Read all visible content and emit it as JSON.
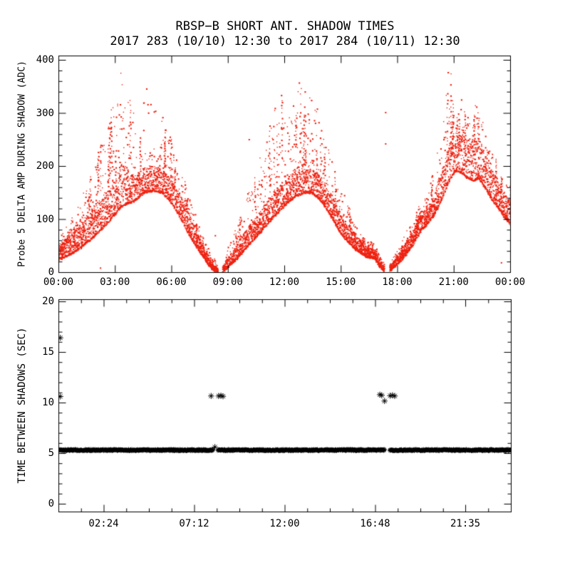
{
  "figure": {
    "background": "#ffffff",
    "axis_color": "#000000"
  },
  "chart_data": {
    "type": "scatter",
    "title": "RBSP−B SHORT ANT. SHADOW TIMES",
    "subtitle": "2017 283 (10/10) 12:30 to 2017 284 (10/11) 12:30",
    "panels": [
      {
        "name": "probe5-delta-amp",
        "ylabel": "Probe 5 DELTA AMP DURING SHADOW (ADC)",
        "xlabel": "",
        "xlim_hours": [
          0,
          24
        ],
        "ylim": [
          0,
          400
        ],
        "x_major_ticks_hours": [
          0,
          3,
          6,
          9,
          12,
          15,
          18,
          21,
          24
        ],
        "x_tick_labels": [
          "00:00",
          "03:00",
          "06:00",
          "09:00",
          "12:00",
          "15:00",
          "18:00",
          "21:00",
          "00:00"
        ],
        "y_major_ticks": [
          0,
          100,
          200,
          300,
          400
        ],
        "y_minor_step": 20,
        "marker": "dot",
        "color": "#ee2211",
        "grid": false,
        "series_note": "three dense shadow-season lobes; each lobe listed as envelope keypoints [hour, low, high]",
        "lobes": [
          {
            "band": [
              [
                0,
                22,
                55
              ],
              [
                0.5,
                30,
                68
              ],
              [
                1,
                40,
                85
              ],
              [
                1.5,
                55,
                105
              ],
              [
                2,
                70,
                128
              ],
              [
                2.5,
                88,
                152
              ],
              [
                3,
                108,
                182
              ],
              [
                3.3,
                122,
                208
              ],
              [
                3.6,
                128,
                198
              ],
              [
                4,
                132,
                182
              ],
              [
                4.5,
                148,
                196
              ],
              [
                5,
                152,
                200
              ],
              [
                5.5,
                148,
                194
              ],
              [
                6,
                128,
                172
              ],
              [
                6.5,
                98,
                142
              ],
              [
                7,
                64,
                104
              ],
              [
                7.5,
                36,
                62
              ],
              [
                7.9,
                14,
                34
              ],
              [
                8.2,
                2,
                16
              ],
              [
                8.45,
                0,
                8
              ]
            ],
            "cloud": [
              [
                0,
                28,
                72
              ],
              [
                0.5,
                38,
                92
              ],
              [
                1,
                48,
                122
              ],
              [
                1.5,
                62,
                168
              ],
              [
                2,
                78,
                218
              ],
              [
                2.5,
                96,
                268
              ],
              [
                3,
                118,
                332
              ],
              [
                3.2,
                126,
                382
              ],
              [
                3.45,
                132,
                395
              ],
              [
                3.7,
                136,
                352
              ],
              [
                4,
                140,
                302
              ],
              [
                4.2,
                146,
                288
              ],
              [
                4.5,
                156,
                338
              ],
              [
                4.75,
                162,
                352
              ],
              [
                4.95,
                162,
                345
              ],
              [
                5.2,
                160,
                312
              ],
              [
                5.5,
                156,
                292
              ],
              [
                6,
                136,
                248
              ],
              [
                6.5,
                106,
                198
              ],
              [
                7,
                70,
                132
              ],
              [
                7.5,
                40,
                84
              ],
              [
                8,
                10,
                42
              ],
              [
                8.45,
                0,
                12
              ]
            ],
            "hole": [
              3.95,
              5.35,
              225,
              288
            ]
          },
          {
            "band": [
              [
                8.7,
                0,
                10
              ],
              [
                9,
                8,
                28
              ],
              [
                9.5,
                26,
                56
              ],
              [
                10,
                46,
                82
              ],
              [
                10.5,
                66,
                106
              ],
              [
                11,
                86,
                132
              ],
              [
                11.5,
                106,
                156
              ],
              [
                12,
                124,
                176
              ],
              [
                12.5,
                140,
                194
              ],
              [
                13,
                148,
                204
              ],
              [
                13.4,
                148,
                200
              ],
              [
                13.8,
                138,
                186
              ],
              [
                14.2,
                118,
                164
              ],
              [
                14.6,
                94,
                138
              ],
              [
                15,
                70,
                108
              ],
              [
                15.4,
                54,
                88
              ],
              [
                15.8,
                40,
                68
              ],
              [
                16.3,
                28,
                48
              ],
              [
                16.8,
                24,
                42
              ],
              [
                17,
                10,
                24
              ],
              [
                17.3,
                0,
                10
              ]
            ],
            "cloud": [
              [
                8.7,
                0,
                14
              ],
              [
                9,
                10,
                46
              ],
              [
                9.5,
                28,
                92
              ],
              [
                10,
                48,
                148
              ],
              [
                10.5,
                70,
                205
              ],
              [
                11,
                90,
                262
              ],
              [
                11.5,
                110,
                310
              ],
              [
                12,
                130,
                340
              ],
              [
                12.5,
                146,
                356
              ],
              [
                12.85,
                150,
                358
              ],
              [
                13,
                152,
                345
              ],
              [
                13.4,
                152,
                330
              ],
              [
                13.8,
                142,
                302
              ],
              [
                14.2,
                122,
                258
              ],
              [
                14.6,
                98,
                212
              ],
              [
                15,
                74,
                166
              ],
              [
                15.4,
                58,
                122
              ],
              [
                15.8,
                44,
                88
              ],
              [
                16.3,
                32,
                62
              ],
              [
                16.8,
                28,
                52
              ],
              [
                17,
                14,
                34
              ],
              [
                17.3,
                0,
                14
              ]
            ],
            "hole": null
          },
          {
            "band": [
              [
                17.6,
                2,
                12
              ],
              [
                18,
                14,
                34
              ],
              [
                18.4,
                30,
                54
              ],
              [
                18.8,
                50,
                80
              ],
              [
                19.2,
                76,
                106
              ],
              [
                19.5,
                86,
                112
              ],
              [
                19.8,
                100,
                134
              ],
              [
                20.2,
                124,
                174
              ],
              [
                20.5,
                150,
                208
              ],
              [
                20.8,
                176,
                248
              ],
              [
                21.1,
                190,
                268
              ],
              [
                21.4,
                186,
                260
              ],
              [
                21.7,
                176,
                250
              ],
              [
                22,
                170,
                246
              ],
              [
                22.3,
                176,
                254
              ],
              [
                22.6,
                160,
                228
              ],
              [
                23,
                136,
                194
              ],
              [
                23.4,
                116,
                164
              ],
              [
                23.7,
                100,
                146
              ],
              [
                24,
                88,
                134
              ]
            ],
            "cloud": [
              [
                17.6,
                2,
                16
              ],
              [
                18,
                16,
                44
              ],
              [
                18.4,
                32,
                70
              ],
              [
                18.8,
                52,
                100
              ],
              [
                19.2,
                78,
                130
              ],
              [
                19.5,
                88,
                142
              ],
              [
                19.8,
                102,
                176
              ],
              [
                20.2,
                128,
                242
              ],
              [
                20.5,
                156,
                312
              ],
              [
                20.7,
                180,
                392
              ],
              [
                20.85,
                186,
                400
              ],
              [
                21,
                190,
                342
              ],
              [
                21.2,
                194,
                312
              ],
              [
                21.4,
                190,
                330
              ],
              [
                21.6,
                182,
                302
              ],
              [
                21.9,
                176,
                282
              ],
              [
                22.1,
                180,
                332
              ],
              [
                22.25,
                182,
                356
              ],
              [
                22.4,
                176,
                302
              ],
              [
                22.7,
                166,
                262
              ],
              [
                23,
                142,
                232
              ],
              [
                23.4,
                120,
                196
              ],
              [
                23.7,
                104,
                168
              ],
              [
                24,
                92,
                162
              ]
            ],
            "hole": null
          }
        ],
        "stray_points": [
          [
            2.2,
            9
          ],
          [
            8.3,
            70
          ],
          [
            10.1,
            251
          ],
          [
            17.35,
            302
          ],
          [
            17.35,
            243
          ],
          [
            23.5,
            19
          ]
        ]
      },
      {
        "name": "time-between-shadows",
        "ylabel": "TIME BETWEEN SHADOWS (SEC)",
        "xlabel": "",
        "xlim_hours": [
          0,
          24
        ],
        "ylim": [
          0,
          20
        ],
        "x_major_ticks_hours": [
          2.4,
          7.2,
          12,
          16.8,
          21.5833
        ],
        "x_tick_labels": [
          "02:24",
          "07:12",
          "12:00",
          "16:48",
          "21:35"
        ],
        "x_minor_step_hours": 1.2,
        "y_major_ticks": [
          0,
          5,
          10,
          15,
          20
        ],
        "y_minor_step": 1,
        "marker": "asterisk",
        "color": "#000000",
        "grid": false,
        "band": {
          "value": 5.3,
          "jitter": 0.14,
          "t_start": 0,
          "t_end": 24,
          "gaps": [
            [
              8.2,
              8.45
            ],
            [
              17.3,
              17.57
            ]
          ]
        },
        "outliers": [
          [
            0.1,
            16.4
          ],
          [
            0.1,
            10.6
          ],
          [
            8.1,
            10.65
          ],
          [
            8.3,
            5.6
          ],
          [
            8.5,
            10.65
          ],
          [
            8.62,
            10.68
          ],
          [
            8.73,
            10.62
          ],
          [
            17.05,
            10.78
          ],
          [
            17.15,
            10.72
          ],
          [
            17.3,
            10.15
          ],
          [
            17.6,
            10.68
          ],
          [
            17.72,
            10.72
          ],
          [
            17.84,
            10.65
          ]
        ]
      }
    ]
  }
}
